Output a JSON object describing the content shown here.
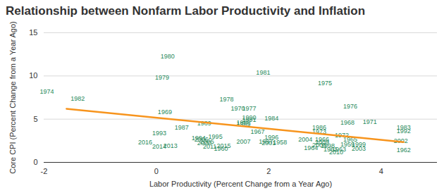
{
  "chart_data": {
    "type": "scatter",
    "title": "Relationship between Nonfarm Labor Productivity and Inflation",
    "x_label": "Labor Productivity (Percent Change from a Year Ago)",
    "y_label": "Core CPI (Percent Change from a Year Ago)",
    "xlim": [
      -2,
      5
    ],
    "ylim": [
      0,
      15
    ],
    "xticks": [
      -2,
      0,
      2,
      4
    ],
    "yticks": [
      0,
      5,
      10,
      15
    ],
    "grid": true,
    "marker": "text",
    "color": "#1f8a5b",
    "labels": [
      "1974",
      "1980",
      "1979",
      "1982",
      "1981",
      "1975",
      "1978",
      "1970",
      "1977",
      "1990",
      "1991",
      "1984",
      "1976",
      "1969",
      "1989",
      "1988",
      "1985",
      "1968",
      "1971",
      "1983",
      "1992",
      "1986",
      "1973",
      "1987",
      "1993",
      "1967",
      "1972",
      "1995",
      "1994",
      "2006",
      "2005",
      "2000",
      "2016",
      "2014",
      "2013",
      "2011",
      "2015",
      "1960",
      "2007",
      "1996",
      "1997",
      "2001",
      "1958",
      "2004",
      "1966",
      "2009",
      "2008",
      "1998",
      "1964",
      "1963",
      "2010",
      "1961",
      "1959",
      "1999",
      "1965",
      "2003",
      "2002",
      "1962"
    ],
    "x": [
      -1.95,
      0.2,
      0.1,
      -1.4,
      1.9,
      3.0,
      1.25,
      1.45,
      1.65,
      1.65,
      1.65,
      2.05,
      3.45,
      0.15,
      0.85,
      1.55,
      1.55,
      3.4,
      3.8,
      4.4,
      4.4,
      2.9,
      2.9,
      0.45,
      0.05,
      1.8,
      3.3,
      1.05,
      0.75,
      0.8,
      0.9,
      0.85,
      -0.2,
      0.05,
      0.25,
      0.95,
      1.2,
      1.15,
      1.55,
      2.05,
      1.95,
      2.0,
      2.2,
      2.65,
      2.95,
      2.95,
      2.9,
      3.05,
      2.75,
      3.25,
      3.2,
      3.1,
      3.4,
      3.6,
      3.45,
      3.6,
      4.35,
      4.4
    ],
    "y": [
      8.2,
      12.3,
      9.8,
      7.4,
      10.4,
      9.2,
      7.3,
      6.2,
      6.2,
      5.2,
      4.9,
      5.1,
      6.5,
      5.8,
      4.5,
      4.6,
      4.4,
      4.6,
      4.7,
      4.0,
      3.6,
      4.0,
      3.5,
      4.0,
      3.4,
      3.5,
      3.1,
      3.0,
      2.8,
      2.6,
      2.4,
      2.2,
      2.3,
      1.8,
      1.9,
      1.8,
      1.9,
      1.6,
      2.4,
      2.9,
      2.4,
      2.25,
      2.3,
      2.65,
      2.6,
      2.3,
      1.95,
      1.9,
      1.7,
      1.5,
      1.2,
      1.5,
      2.1,
      2.1,
      2.6,
      1.6,
      2.5,
      1.45
    ],
    "trend_line": {
      "x": [
        -1.6,
        4.4
      ],
      "y": [
        6.2,
        2.35
      ],
      "color": "#f7941d"
    }
  }
}
